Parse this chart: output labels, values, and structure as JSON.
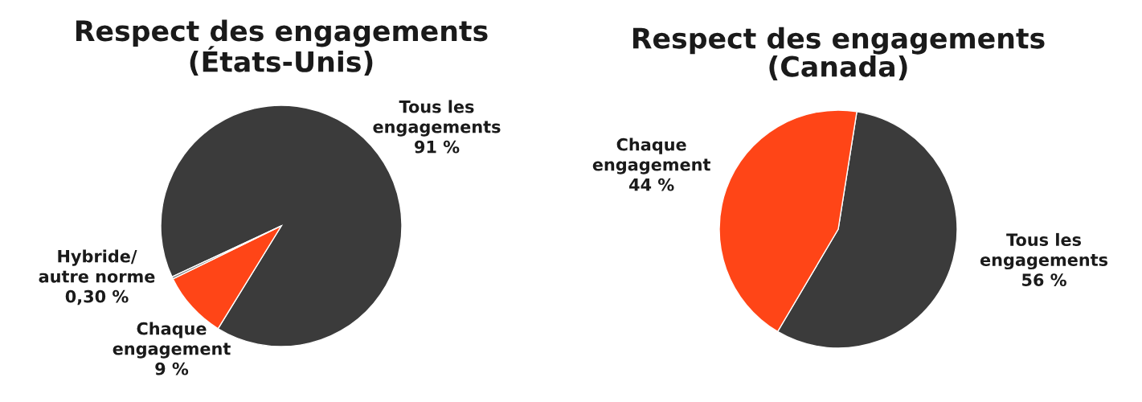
{
  "chart_data": [
    {
      "type": "pie",
      "title": "Respect des engagements\n(États-Unis)",
      "categories": [
        "Tous les\nengagements",
        "Chaque\nengagement",
        "Hybride/\nautre norme"
      ],
      "values": [
        91,
        9,
        0.3
      ],
      "colors": [
        "#3b3b3b",
        "#ff4517",
        "#7f7f7f"
      ],
      "value_labels": [
        "91 %",
        "9 %",
        "0,30 %"
      ]
    },
    {
      "type": "pie",
      "title": "Respect des engagements\n(Canada)",
      "categories": [
        "Tous les\nengagements",
        "Chaque\nengagement"
      ],
      "values": [
        56,
        44
      ],
      "colors": [
        "#3b3b3b",
        "#ff4517"
      ],
      "value_labels": [
        "56 %",
        "44 %"
      ]
    }
  ]
}
